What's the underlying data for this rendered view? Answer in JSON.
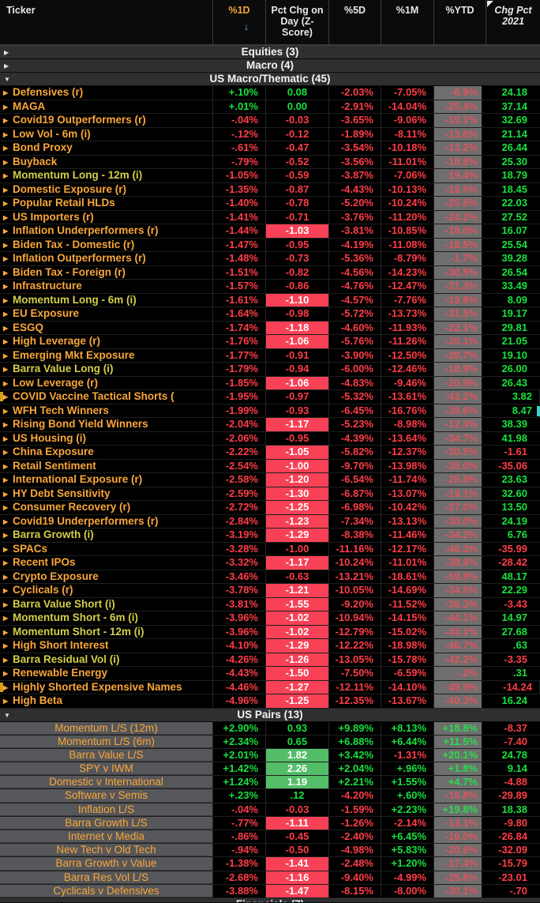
{
  "columns": {
    "ticker": "Ticker",
    "d1": "%1D",
    "zscore": "Pct Chg on Day (Z-Score)",
    "d5": "%5D",
    "m1": "%1M",
    "ytd": "%YTD",
    "y2021": "Chg Pct 2021"
  },
  "sort": {
    "column": "%1D",
    "direction": "descending",
    "arrow": "↓"
  },
  "colors": {
    "positive": "#19e13e",
    "negative": "#ff3d47",
    "ticker_amber": "#f9a63a",
    "ticker_yellow": "#d3ce49",
    "zscore_negative_highlight_bg": "#f84156",
    "zscore_positive_highlight_bg": "#54bd68",
    "ytd_cell_bg": "#6e6e6e",
    "ytd_negative_text": "#dd5560",
    "ytd_positive_text": "#2bdd4d",
    "pairs_ticker_bg": "#56575a",
    "section_bar_bg": "#2e2f31",
    "sort_arrow_blue": "#6ab0e8",
    "header_1d_orange": "#f8a33a"
  },
  "sections": [
    {
      "label": "Equities (3)",
      "state": "collapsed",
      "style": "macro",
      "rows": []
    },
    {
      "label": "Macro (4)",
      "state": "collapsed",
      "style": "macro",
      "rows": []
    },
    {
      "label": "US Macro/Thematic (45)",
      "state": "expanded",
      "style": "macro",
      "rows": [
        [
          "Defensives (r)",
          "+.10%",
          "0.08",
          "-2.03%",
          "-7.05%",
          "-6.9%",
          "24.18",
          ""
        ],
        [
          "MAGA",
          "+.01%",
          "0.00",
          "-2.91%",
          "-14.04%",
          "-25.4%",
          "37.14",
          ""
        ],
        [
          "Covid19 Outperformers (r)",
          "-.04%",
          "-0.03",
          "-3.65%",
          "-9.06%",
          "-19.1%",
          "32.69",
          ""
        ],
        [
          "Low Vol - 6m (i)",
          "-.12%",
          "-0.12",
          "-1.89%",
          "-8.11%",
          "-13.6%",
          "21.14",
          ""
        ],
        [
          "Bond Proxy",
          "-.61%",
          "-0.47",
          "-3.54%",
          "-10.18%",
          "-13.2%",
          "26.44",
          ""
        ],
        [
          "Buyback",
          "-.79%",
          "-0.52",
          "-3.56%",
          "-11.01%",
          "-18.5%",
          "25.30",
          ""
        ],
        [
          "Momentum Long - 12m (i)",
          "-1.05%",
          "-0.59",
          "-3.87%",
          "-7.06%",
          "-19.4%",
          "18.79",
          "y"
        ],
        [
          "Domestic Exposure (r)",
          "-1.35%",
          "-0.87",
          "-4.43%",
          "-10.13%",
          "-19.5%",
          "18.45",
          ""
        ],
        [
          "Popular Retail HLDs",
          "-1.40%",
          "-0.78",
          "-5.20%",
          "-10.24%",
          "-25.5%",
          "22.03",
          ""
        ],
        [
          "US Importers (r)",
          "-1.41%",
          "-0.71",
          "-3.76%",
          "-11.20%",
          "-24.2%",
          "27.52",
          ""
        ],
        [
          "Inflation Underperformers (r)",
          "-1.44%",
          "-1.03",
          "-3.81%",
          "-10.85%",
          "-18.0%",
          "16.07",
          "zr"
        ],
        [
          "Biden Tax - Domestic (r)",
          "-1.47%",
          "-0.95",
          "-4.19%",
          "-11.08%",
          "-18.5%",
          "25.54",
          ""
        ],
        [
          "Inflation Outperformers (r)",
          "-1.48%",
          "-0.73",
          "-5.36%",
          "-8.79%",
          "-1.7%",
          "39.28",
          ""
        ],
        [
          "Biden Tax - Foreign (r)",
          "-1.51%",
          "-0.82",
          "-4.56%",
          "-14.23%",
          "-30.5%",
          "26.54",
          ""
        ],
        [
          "Infrastructure",
          "-1.57%",
          "-0.86",
          "-4.76%",
          "-12.47%",
          "-21.3%",
          "33.49",
          ""
        ],
        [
          "Momentum Long - 6m (i)",
          "-1.61%",
          "-1.10",
          "-4.57%",
          "-7.76%",
          "-19.8%",
          "8.09",
          "zr y"
        ],
        [
          "EU Exposure",
          "-1.64%",
          "-0.98",
          "-5.72%",
          "-13.73%",
          "-31.5%",
          "19.17",
          ""
        ],
        [
          "ESGQ",
          "-1.74%",
          "-1.18",
          "-4.60%",
          "-11.93%",
          "-22.1%",
          "29.81",
          "zr"
        ],
        [
          "High Leverage (r)",
          "-1.76%",
          "-1.06",
          "-5.76%",
          "-11.26%",
          "-20.1%",
          "21.05",
          "zr"
        ],
        [
          "Emerging Mkt Exposure",
          "-1.77%",
          "-0.91",
          "-3.90%",
          "-12.50%",
          "-28.7%",
          "19.10",
          ""
        ],
        [
          "Barra Value Long (i)",
          "-1.79%",
          "-0.94",
          "-6.00%",
          "-12.46%",
          "-18.9%",
          "26.00",
          "y"
        ],
        [
          "Low Leverage (r)",
          "-1.85%",
          "-1.06",
          "-4.83%",
          "-9.46%",
          "-20.9%",
          "26.43",
          "zr"
        ],
        [
          "COVID Vaccine Tactical Shorts (",
          "-1.95%",
          "-0.97",
          "-5.32%",
          "-13.61%",
          "-43.2%",
          "3.82",
          "ml"
        ],
        [
          "WFH Tech Winners",
          "-1.99%",
          "-0.93",
          "-6.45%",
          "-16.76%",
          "-36.6%",
          "8.47",
          "mr"
        ],
        [
          "Rising Bond Yield Winners",
          "-2.04%",
          "-1.17",
          "-5.23%",
          "-8.98%",
          "-12.4%",
          "38.39",
          "zr"
        ],
        [
          "US Housing (i)",
          "-2.06%",
          "-0.95",
          "-4.39%",
          "-13.64%",
          "-34.7%",
          "41.98",
          ""
        ],
        [
          "China Exposure",
          "-2.22%",
          "-1.05",
          "-5.82%",
          "-12.37%",
          "-30.5%",
          "-1.61",
          "zr"
        ],
        [
          "Retail Sentiment",
          "-2.54%",
          "-1.00",
          "-9.70%",
          "-13.98%",
          "-35.0%",
          "-35.06",
          "zr"
        ],
        [
          "International Exposure (r)",
          "-2.58%",
          "-1.20",
          "-6.54%",
          "-11.74%",
          "-25.8%",
          "23.63",
          "zr"
        ],
        [
          "HY Debt Sensitivity",
          "-2.59%",
          "-1.30",
          "-6.87%",
          "-13.07%",
          "-19.1%",
          "32.60",
          "zr"
        ],
        [
          "Consumer Recovery (r)",
          "-2.72%",
          "-1.25",
          "-6.98%",
          "-10.42%",
          "-27.0%",
          "13.50",
          "zr"
        ],
        [
          "Covid19 Underperformers (r)",
          "-2.84%",
          "-1.23",
          "-7.34%",
          "-13.13%",
          "-30.0%",
          "24.19",
          "zr"
        ],
        [
          "Barra Growth (i)",
          "-3.19%",
          "-1.29",
          "-8.38%",
          "-11.46%",
          "-34.2%",
          "6.76",
          "zr y"
        ],
        [
          "SPACs",
          "-3.28%",
          "-1.00",
          "-11.16%",
          "-12.17%",
          "-46.3%",
          "-35.99",
          ""
        ],
        [
          "Recent IPOs",
          "-3.32%",
          "-1.17",
          "-10.24%",
          "-11.01%",
          "-38.9%",
          "-28.42",
          "zr"
        ],
        [
          "Crypto Exposure",
          "-3.46%",
          "-0.63",
          "-13.21%",
          "-18.61%",
          "-59.8%",
          "48.17",
          ""
        ],
        [
          "Cyclicals (r)",
          "-3.78%",
          "-1.21",
          "-10.05%",
          "-14.69%",
          "-34.6%",
          "22.29",
          "zr"
        ],
        [
          "Barra Value Short (i)",
          "-3.81%",
          "-1.55",
          "-9.20%",
          "-11.52%",
          "-36.3%",
          "-3.43",
          "zr y"
        ],
        [
          "Momentum Short - 6m (i)",
          "-3.96%",
          "-1.02",
          "-10.94%",
          "-14.15%",
          "-44.1%",
          "14.97",
          "zr y"
        ],
        [
          "Momentum Short - 12m (i)",
          "-3.96%",
          "-1.02",
          "-12.79%",
          "-15.02%",
          "-43.1%",
          "27.68",
          "zr y"
        ],
        [
          "High Short Interest",
          "-4.10%",
          "-1.29",
          "-12.22%",
          "-18.98%",
          "-46.7%",
          ".63",
          "zr"
        ],
        [
          "Barra Residual Vol (i)",
          "-4.26%",
          "-1.26",
          "-13.05%",
          "-15.78%",
          "-42.2%",
          "-3.35",
          "zr y"
        ],
        [
          "Renewable Energy",
          "-4.43%",
          "-1.50",
          "-7.50%",
          "-6.59%",
          "-.2%",
          ".31",
          "zr"
        ],
        [
          "Highly Shorted Expensive Names",
          "-4.46%",
          "-1.27",
          "-12.11%",
          "-14.10%",
          "-49.9%",
          "-14.24",
          "zr ml"
        ],
        [
          "High Beta",
          "-4.96%",
          "-1.25",
          "-12.35%",
          "-13.67%",
          "-40.3%",
          "16.24",
          "zr"
        ]
      ]
    },
    {
      "label": "US Pairs (13)",
      "state": "expanded",
      "style": "pairs",
      "rows": [
        [
          "Momentum L/S (12m)",
          "+2.90%",
          "0.93",
          "+9.89%",
          "+8.13%",
          "+18.8%",
          "-8.37",
          ""
        ],
        [
          "Momentum L/S (6m)",
          "+2.34%",
          "0.65",
          "+6.88%",
          "+6.44%",
          "+11.5%",
          "-7.40",
          ""
        ],
        [
          "Barra Value L/S",
          "+2.01%",
          "1.82",
          "+3.42%",
          "-1.31%",
          "+20.1%",
          "24.78",
          "zg"
        ],
        [
          "SPY v IWM",
          "+1.42%",
          "2.26",
          "+2.04%",
          "+.96%",
          "+1.8%",
          "9.14",
          "zg"
        ],
        [
          "Domestic v International",
          "+1.24%",
          "1.19",
          "+2.21%",
          "+1.55%",
          "+4.7%",
          "-4.88",
          "zg"
        ],
        [
          "Software v Semis",
          "+.23%",
          ".12",
          "-4.20%",
          "+.60%",
          "-16.8%",
          "-29.89",
          ""
        ],
        [
          "Inflation L/S",
          "-.04%",
          "-0.03",
          "-1.59%",
          "+2.23%",
          "+19.8%",
          "18.38",
          ""
        ],
        [
          "Barra Growth L/S",
          "-.77%",
          "-1.11",
          "-1.26%",
          "-2.14%",
          "-13.1%",
          "-9.80",
          "zr"
        ],
        [
          "Internet v Media",
          "-.86%",
          "-0.45",
          "-2.40%",
          "+6.45%",
          "-16.0%",
          "-26.84",
          ""
        ],
        [
          "New Tech v Old Tech",
          "-.94%",
          "-0.50",
          "-4.98%",
          "+5.83%",
          "-20.6%",
          "-32.09",
          ""
        ],
        [
          "Barra Growth v Value",
          "-1.38%",
          "-1.41",
          "-2.48%",
          "+1.20%",
          "-17.4%",
          "-15.79",
          "zr"
        ],
        [
          "Barra Res Vol L/S",
          "-2.68%",
          "-1.16",
          "-9.40%",
          "-4.99%",
          "-25.8%",
          "-23.01",
          "zr"
        ],
        [
          "Cyclicals v Defensives",
          "-3.88%",
          "-1.47",
          "-8.15%",
          "-8.00%",
          "-30.1%",
          "-.70",
          "zr"
        ]
      ]
    },
    {
      "label": "Financials (7)",
      "state": "collapsed",
      "style": "macro",
      "partial": true,
      "rows": []
    }
  ]
}
